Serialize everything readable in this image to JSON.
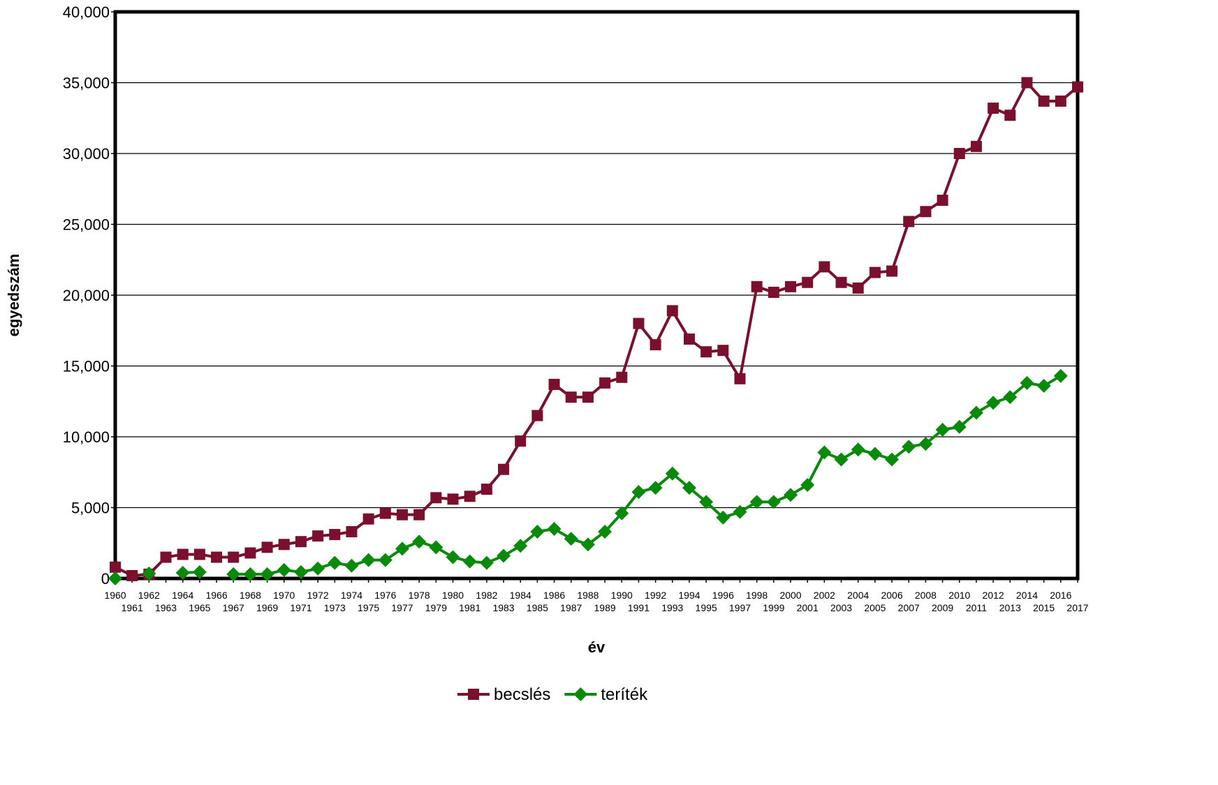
{
  "chart_data": {
    "type": "line",
    "xlabel": "év",
    "ylabel": "egyedszám",
    "ylim": [
      0,
      40000
    ],
    "yticks": [
      "0",
      "5,000",
      "10,000",
      "15,000",
      "20,000",
      "25,000",
      "30,000",
      "35,000",
      "40,000"
    ],
    "grid": "horizontal",
    "legend_position": "bottom",
    "x": [
      1960,
      1961,
      1962,
      1963,
      1964,
      1965,
      1966,
      1967,
      1968,
      1969,
      1970,
      1971,
      1972,
      1973,
      1974,
      1975,
      1976,
      1977,
      1978,
      1979,
      1980,
      1981,
      1982,
      1983,
      1984,
      1985,
      1986,
      1987,
      1988,
      1989,
      1990,
      1991,
      1992,
      1993,
      1994,
      1995,
      1996,
      1997,
      1998,
      1999,
      2000,
      2001,
      2002,
      2003,
      2004,
      2005,
      2006,
      2007,
      2008,
      2009,
      2010,
      2011,
      2012,
      2013,
      2014,
      2015,
      2016,
      2017
    ],
    "series": [
      {
        "name": "becslés",
        "color": "#7b0f2e",
        "marker": "square",
        "values": [
          800,
          200,
          300,
          1500,
          1700,
          1700,
          1500,
          1500,
          1800,
          2200,
          2400,
          2600,
          3000,
          3100,
          3300,
          4200,
          4600,
          4500,
          4500,
          5700,
          5600,
          5800,
          6300,
          7700,
          9700,
          11500,
          13700,
          12800,
          12800,
          13800,
          14200,
          18000,
          16500,
          18900,
          16900,
          16000,
          16100,
          14100,
          20600,
          20200,
          20600,
          20900,
          22000,
          20900,
          20500,
          21600,
          21700,
          25200,
          25900,
          26700,
          30000,
          30500,
          33200,
          32700,
          35000,
          33700,
          33700,
          34700
        ]
      },
      {
        "name": "teríték",
        "color": "#0a8a0a",
        "marker": "diamond",
        "values": [
          0,
          null,
          350,
          null,
          400,
          450,
          null,
          300,
          300,
          300,
          600,
          450,
          700,
          1100,
          900,
          1300,
          1300,
          2100,
          2600,
          2200,
          1500,
          1200,
          1100,
          1600,
          2300,
          3300,
          3500,
          2800,
          2400,
          3300,
          4600,
          6100,
          6400,
          7400,
          6400,
          5400,
          4300,
          4700,
          5400,
          5400,
          5900,
          6600,
          8900,
          8400,
          9100,
          8800,
          8400,
          9300,
          9500,
          10500,
          10700,
          11700,
          12400,
          12800,
          13800,
          13600,
          14300,
          null
        ]
      }
    ]
  }
}
